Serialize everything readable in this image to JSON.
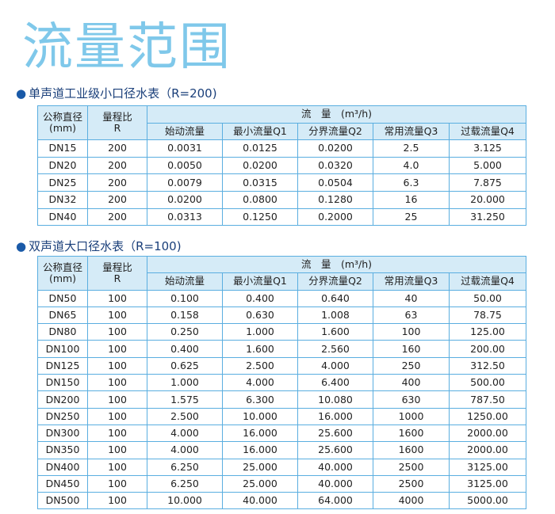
{
  "title": "流量范围",
  "tables": [
    {
      "heading": "单声道工业级小口径水表（R=200)",
      "header": {
        "diameter": [
          "公称直径",
          "(mm)"
        ],
        "range": [
          "量程比",
          "R"
        ],
        "flow": "流　量　(m³/h)",
        "columns": [
          "始动流量",
          "最小流量Q1",
          "分界流量Q2",
          "常用流量Q3",
          "过载流量Q4"
        ]
      },
      "rows": [
        [
          "DN15",
          "200",
          "0.0031",
          "0.0125",
          "0.0200",
          "2.5",
          "3.125"
        ],
        [
          "DN20",
          "200",
          "0.0050",
          "0.0200",
          "0.0320",
          "4.0",
          "5.000"
        ],
        [
          "DN25",
          "200",
          "0.0079",
          "0.0315",
          "0.0504",
          "6.3",
          "7.875"
        ],
        [
          "DN32",
          "200",
          "0.0200",
          "0.0800",
          "0.1280",
          "16",
          "20.000"
        ],
        [
          "DN40",
          "200",
          "0.0313",
          "0.1250",
          "0.2000",
          "25",
          "31.250"
        ]
      ]
    },
    {
      "heading": "双声道大口径水表（R=100)",
      "header": {
        "diameter": [
          "公称直径",
          "(mm)"
        ],
        "range": [
          "量程比",
          "R"
        ],
        "flow": "流　量　(m³/h)",
        "columns": [
          "始动流量",
          "最小流量Q1",
          "分界流量Q2",
          "常用流量Q3",
          "过载流量Q4"
        ]
      },
      "rows": [
        [
          "DN50",
          "100",
          "0.100",
          "0.400",
          "0.640",
          "40",
          "50.00"
        ],
        [
          "DN65",
          "100",
          "0.158",
          "0.630",
          "1.008",
          "63",
          "78.75"
        ],
        [
          "DN80",
          "100",
          "0.250",
          "1.000",
          "1.600",
          "100",
          "125.00"
        ],
        [
          "DN100",
          "100",
          "0.400",
          "1.600",
          "2.560",
          "160",
          "200.00"
        ],
        [
          "DN125",
          "100",
          "0.625",
          "2.500",
          "4.000",
          "250",
          "312.50"
        ],
        [
          "DN150",
          "100",
          "1.000",
          "4.000",
          "6.400",
          "400",
          "500.00"
        ],
        [
          "DN200",
          "100",
          "1.575",
          "6.300",
          "10.080",
          "630",
          "787.50"
        ],
        [
          "DN250",
          "100",
          "2.500",
          "10.000",
          "16.000",
          "1000",
          "1250.00"
        ],
        [
          "DN300",
          "100",
          "4.000",
          "16.000",
          "25.600",
          "1600",
          "2000.00"
        ],
        [
          "DN350",
          "100",
          "4.000",
          "16.000",
          "25.600",
          "1600",
          "2000.00"
        ],
        [
          "DN400",
          "100",
          "6.250",
          "25.000",
          "40.000",
          "2500",
          "3125.00"
        ],
        [
          "DN450",
          "100",
          "6.250",
          "25.000",
          "40.000",
          "2500",
          "3125.00"
        ],
        [
          "DN500",
          "100",
          "10.000",
          "40.000",
          "64.000",
          "4000",
          "5000.00"
        ]
      ]
    }
  ]
}
